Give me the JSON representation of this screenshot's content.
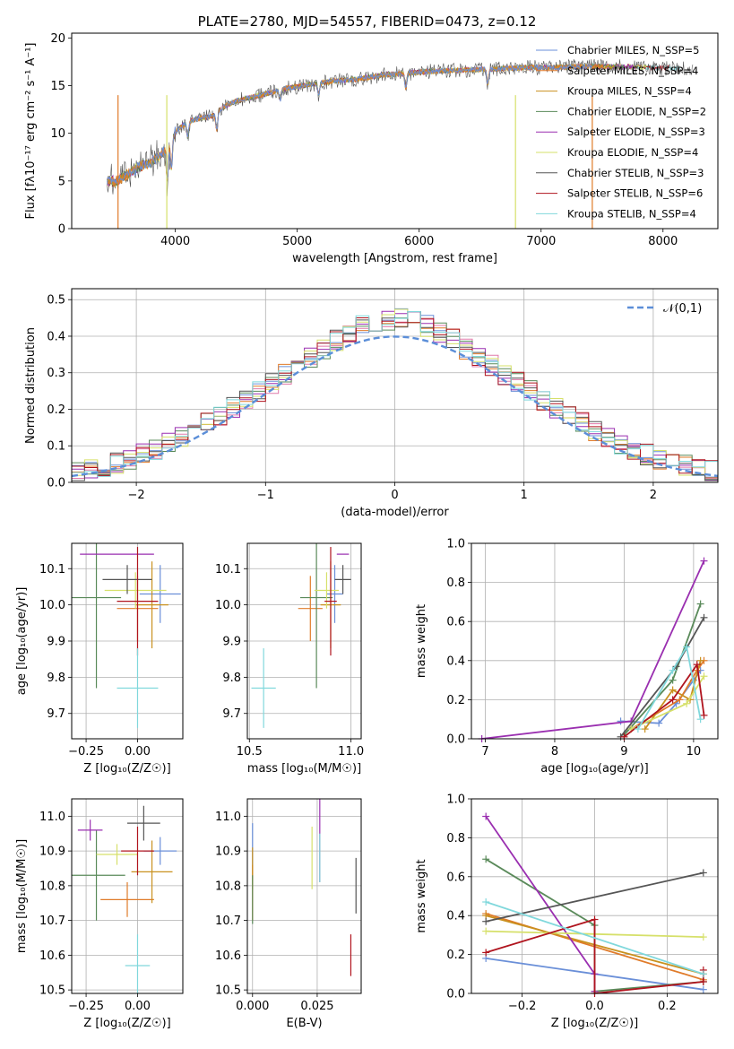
{
  "chart_data": [
    {
      "type": "line",
      "title": "PLATE=2780, MJD=54557, FIBERID=0473, z=0.12",
      "xlabel": "wavelength [Angstrom, rest frame]",
      "ylabel": "Flux [fλ10⁻¹⁷ erg cm⁻² s⁻¹ A⁻¹]",
      "xlim": [
        3150,
        8450
      ],
      "ylim": [
        0,
        20.5
      ],
      "xticks": [
        "4000",
        "5000",
        "6000",
        "7000",
        "8000"
      ],
      "yticks": [
        "0",
        "5",
        "10",
        "15",
        "20"
      ],
      "legend_position": "right",
      "legend": [
        "Chabrier MILES, N_SSP=5",
        "Salpeter MILES, N_SSP=4",
        "Kroupa MILES, N_SSP=4",
        "Chabrier ELODIE, N_SSP=2",
        "Salpeter ELODIE, N_SSP=3",
        "Kroupa ELODIE, N_SSP=4",
        "Chabrier STELIB, N_SSP=3",
        "Salpeter STELIB, N_SSP=6",
        "Kroupa STELIB, N_SSP=4"
      ],
      "spectrum": {
        "x": [
          3400,
          3500,
          3600,
          3700,
          3800,
          3900,
          4000,
          4100,
          4200,
          4300,
          4400,
          4500,
          4700,
          4900,
          5100,
          5300,
          5500,
          5700,
          5900,
          6100,
          6300,
          6500,
          6700,
          6900,
          7100,
          7300,
          7500,
          7700,
          7900,
          8100,
          8250
        ],
        "y": [
          5.2,
          4.9,
          5.6,
          6.5,
          6.9,
          8.0,
          10.2,
          11.2,
          11.6,
          11.8,
          12.8,
          13.4,
          14.0,
          14.7,
          15.1,
          15.5,
          15.7,
          16.1,
          16.3,
          16.5,
          16.6,
          16.7,
          16.8,
          16.9,
          16.9,
          17.0,
          17.0,
          17.0,
          16.9,
          16.8,
          16.7
        ]
      }
    },
    {
      "type": "line",
      "xlabel": "(data-model)/error",
      "ylabel": "Normed distribution",
      "xlim": [
        -2.5,
        2.5
      ],
      "ylim": [
        0,
        0.53
      ],
      "xticks": [
        "−2",
        "−1",
        "0",
        "1",
        "2"
      ],
      "yticks": [
        "0.0",
        "0.1",
        "0.2",
        "0.3",
        "0.4",
        "0.5"
      ],
      "legend": [
        "𝒩(0,1)"
      ],
      "legend_position": "top-right",
      "curve": "normal pdf, mean 0, sigma 1",
      "histogram_note": "9 step histograms, bin width 0.1, following the normal curve"
    },
    {
      "type": "scatter",
      "xlabel": "Z [log₁₀(Z/Z☉)]",
      "ylabel": "age  [log₁₀(age/yr)]",
      "xlim": [
        -0.32,
        0.22
      ],
      "ylim": [
        9.63,
        10.17
      ],
      "xticks": [
        "−0.25",
        "0.00"
      ],
      "yticks": [
        "9.7",
        "9.8",
        "9.9",
        "10.0",
        "10.1"
      ],
      "points": [
        {
          "x": 0.11,
          "y": 10.03,
          "xerr": 0.1,
          "yerr": 0.08
        },
        {
          "x": 0.0,
          "y": 9.99,
          "xerr": 0.1,
          "yerr": 0.09
        },
        {
          "x": 0.07,
          "y": 10.0,
          "xerr": 0.08,
          "yerr": 0.12
        },
        {
          "x": -0.2,
          "y": 10.02,
          "xerr": 0.12,
          "yerr": 0.25
        },
        {
          "x": -0.1,
          "y": 10.14,
          "xerr": 0.18,
          "yerr": 0.0
        },
        {
          "x": -0.01,
          "y": 10.04,
          "xerr": 0.15,
          "yerr": 0.05
        },
        {
          "x": -0.05,
          "y": 10.07,
          "xerr": 0.12,
          "yerr": 0.04
        },
        {
          "x": 0.0,
          "y": 10.01,
          "xerr": 0.1,
          "yerr": 0.15
        },
        {
          "x": 0.0,
          "y": 9.77,
          "xerr": 0.1,
          "yerr": 0.11
        }
      ]
    },
    {
      "type": "scatter",
      "xlabel": "mass [log₁₀(M/M☉)]",
      "ylabel": "",
      "xlim": [
        10.49,
        11.05
      ],
      "ylim": [
        9.63,
        10.17
      ],
      "xticks": [
        "10.5",
        "11.0"
      ],
      "yticks": [
        "9.7",
        "9.8",
        "9.9",
        "10.0",
        "10.1"
      ],
      "points": [
        {
          "x": 10.92,
          "y": 10.03,
          "xerr": 0.04,
          "yerr": 0.08
        },
        {
          "x": 10.8,
          "y": 9.99,
          "xerr": 0.06,
          "yerr": 0.09
        },
        {
          "x": 10.9,
          "y": 10.0,
          "xerr": 0.05,
          "yerr": 0.12
        },
        {
          "x": 10.83,
          "y": 10.02,
          "xerr": 0.08,
          "yerr": 0.25
        },
        {
          "x": 10.96,
          "y": 10.14,
          "xerr": 0.03,
          "yerr": 0.0
        },
        {
          "x": 10.88,
          "y": 10.04,
          "xerr": 0.06,
          "yerr": 0.05
        },
        {
          "x": 10.96,
          "y": 10.07,
          "xerr": 0.04,
          "yerr": 0.04
        },
        {
          "x": 10.9,
          "y": 10.01,
          "xerr": 0.03,
          "yerr": 0.15
        },
        {
          "x": 10.57,
          "y": 9.77,
          "xerr": 0.06,
          "yerr": 0.11
        }
      ]
    },
    {
      "type": "line",
      "xlabel": "age  [log₁₀(age/yr)]",
      "ylabel": "mass weight",
      "xlim": [
        6.8,
        10.35
      ],
      "ylim": [
        0,
        1.0
      ],
      "xticks": [
        "7",
        "8",
        "9",
        "10"
      ],
      "yticks": [
        "0.0",
        "0.2",
        "0.4",
        "0.6",
        "0.8",
        "1.0"
      ],
      "series": [
        {
          "x": [
            8.95,
            9.5,
            9.75,
            10.0,
            10.1
          ],
          "y": [
            0.09,
            0.08,
            0.18,
            0.3,
            0.35
          ]
        },
        {
          "x": [
            9.1,
            9.8,
            10.05,
            10.15
          ],
          "y": [
            0.05,
            0.2,
            0.35,
            0.4
          ]
        },
        {
          "x": [
            9.3,
            9.7,
            9.95,
            10.1
          ],
          "y": [
            0.05,
            0.25,
            0.2,
            0.4
          ]
        },
        {
          "x": [
            9.0,
            9.7,
            10.1
          ],
          "y": [
            0.02,
            0.3,
            0.69
          ]
        },
        {
          "x": [
            6.95,
            9.1,
            10.15
          ],
          "y": [
            0.0,
            0.09,
            0.91
          ]
        },
        {
          "x": [
            9.1,
            9.9,
            10.15
          ],
          "y": [
            0.05,
            0.18,
            0.32
          ]
        },
        {
          "x": [
            8.95,
            9.75,
            10.15
          ],
          "y": [
            0.01,
            0.37,
            0.62
          ]
        },
        {
          "x": [
            9.0,
            9.7,
            10.05,
            10.15
          ],
          "y": [
            0.01,
            0.2,
            0.38,
            0.12
          ]
        },
        {
          "x": [
            9.2,
            9.7,
            9.9,
            10.1
          ],
          "y": [
            0.05,
            0.35,
            0.47,
            0.1
          ]
        }
      ]
    },
    {
      "type": "scatter",
      "xlabel": "Z [log₁₀(Z/Z☉)]",
      "ylabel": "mass [log₁₀(M/M☉)]",
      "xlim": [
        -0.32,
        0.22
      ],
      "ylim": [
        10.49,
        11.05
      ],
      "xticks": [
        "−0.25",
        "0.00"
      ],
      "yticks": [
        "10.5",
        "10.6",
        "10.7",
        "10.8",
        "10.9",
        "11.0"
      ],
      "points": [
        {
          "x": 0.11,
          "y": 10.9,
          "xerr": 0.08,
          "yerr": 0.04
        },
        {
          "x": -0.05,
          "y": 10.76,
          "xerr": 0.13,
          "yerr": 0.05
        },
        {
          "x": 0.07,
          "y": 10.84,
          "xerr": 0.1,
          "yerr": 0.09
        },
        {
          "x": -0.2,
          "y": 10.83,
          "xerr": 0.14,
          "yerr": 0.13
        },
        {
          "x": -0.23,
          "y": 10.96,
          "xerr": 0.06,
          "yerr": 0.03
        },
        {
          "x": -0.1,
          "y": 10.89,
          "xerr": 0.1,
          "yerr": 0.03
        },
        {
          "x": 0.03,
          "y": 10.98,
          "xerr": 0.08,
          "yerr": 0.05
        },
        {
          "x": 0.0,
          "y": 10.9,
          "xerr": 0.08,
          "yerr": 0.07
        },
        {
          "x": 0.0,
          "y": 10.57,
          "xerr": 0.06,
          "yerr": 0.09
        }
      ]
    },
    {
      "type": "scatter",
      "xlabel": "E(B-V)",
      "ylabel": "",
      "xlim": [
        -0.002,
        0.042
      ],
      "ylim": [
        10.49,
        11.05
      ],
      "xticks": [
        "0.000",
        "0.025"
      ],
      "yticks": [
        "10.5",
        "10.6",
        "10.7",
        "10.8",
        "10.9",
        "11.0"
      ],
      "points": [
        {
          "x": 0.0,
          "y": 10.9,
          "yerr": 0.08
        },
        {
          "x": 0.0,
          "y": 10.78,
          "yerr": 0.08
        },
        {
          "x": 0.0,
          "y": 10.85,
          "yerr": 0.06
        },
        {
          "x": 0.0,
          "y": 10.76,
          "yerr": 0.07
        },
        {
          "x": 0.026,
          "y": 10.97,
          "yerr": 0.16
        },
        {
          "x": 0.023,
          "y": 10.88,
          "yerr": 0.09
        },
        {
          "x": 0.04,
          "y": 10.8,
          "yerr": 0.08
        },
        {
          "x": 0.038,
          "y": 10.6,
          "yerr": 0.06
        },
        {
          "x": 0.026,
          "y": 10.88,
          "yerr": 0.07
        }
      ]
    },
    {
      "type": "line",
      "xlabel": "Z [log₁₀(Z/Z☉)]",
      "ylabel": "mass weight",
      "xlim": [
        -0.34,
        0.34
      ],
      "ylim": [
        0,
        1.0
      ],
      "xticks": [
        "−0.2",
        "0.0",
        "0.2"
      ],
      "yticks": [
        "0.0",
        "0.2",
        "0.4",
        "0.6",
        "0.8",
        "1.0"
      ],
      "series": [
        {
          "x": [
            -0.3,
            0.3
          ],
          "y": [
            0.18,
            0.02
          ]
        },
        {
          "x": [
            -0.3,
            0.3
          ],
          "y": [
            0.41,
            0.07
          ]
        },
        {
          "x": [
            -0.3,
            0.3
          ],
          "y": [
            0.4,
            0.1
          ]
        },
        {
          "x": [
            -0.3,
            0.0,
            0.0,
            0.3
          ],
          "y": [
            0.69,
            0.35,
            0.01,
            0.06
          ]
        },
        {
          "x": [
            -0.3,
            0.0,
            0.0
          ],
          "y": [
            0.91,
            0.1,
            0.01
          ]
        },
        {
          "x": [
            -0.3,
            0.3
          ],
          "y": [
            0.32,
            0.29
          ]
        },
        {
          "x": [
            -0.3,
            0.3
          ],
          "y": [
            0.37,
            0.62
          ]
        },
        {
          "x": [
            -0.3,
            0.0,
            0.0,
            0.3,
            0.3
          ],
          "y": [
            0.21,
            0.38,
            0.0,
            0.06,
            0.12
          ]
        },
        {
          "x": [
            -0.3,
            0.3
          ],
          "y": [
            0.47,
            0.1
          ]
        }
      ]
    }
  ],
  "colors": [
    "#6a8fd8",
    "#e07b2a",
    "#c9911f",
    "#5a8a5a",
    "#9a2fb0",
    "#d6e06a",
    "#555555",
    "#b0141e",
    "#80d8dc",
    "#e07aaa"
  ]
}
